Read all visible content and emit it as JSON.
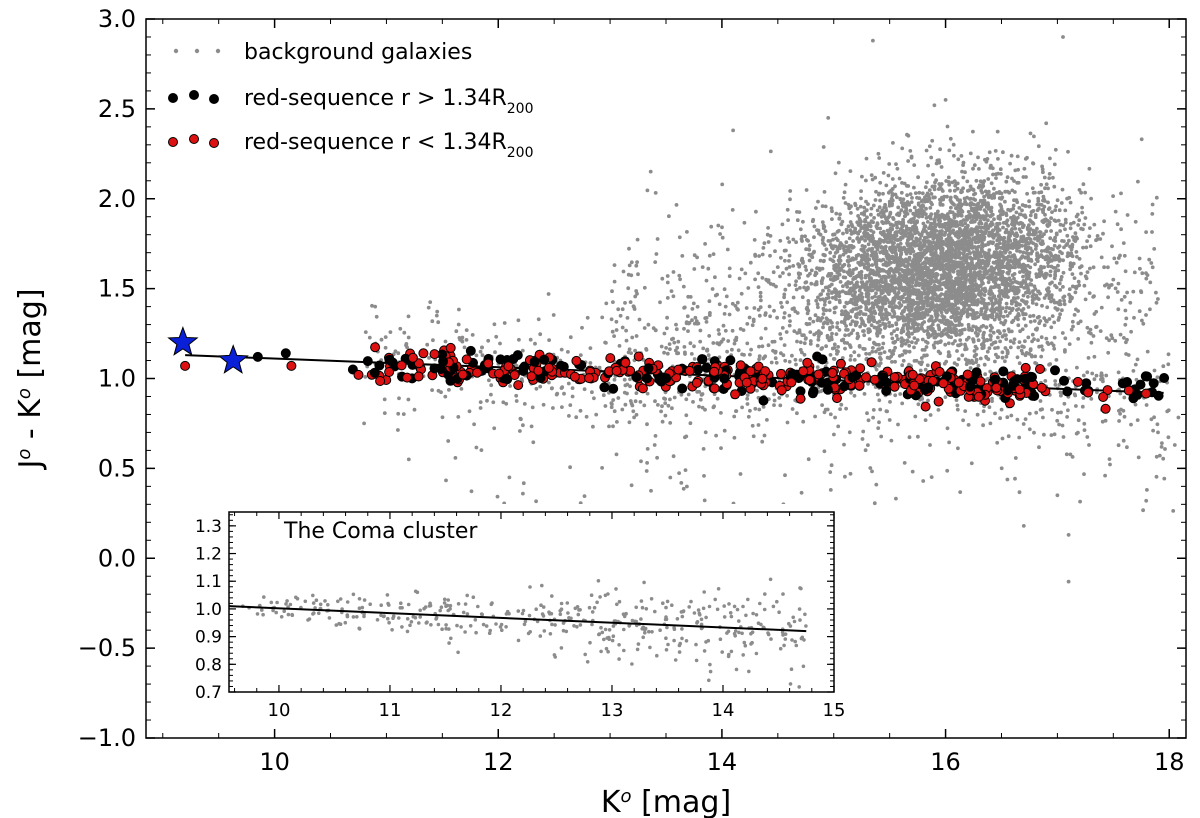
{
  "chart_data": {
    "type": "scatter",
    "xlabel": "K",
    "xlabel_sup": "o",
    "xlabel_unit": " [mag]",
    "ylabel": "J",
    "ylabel_sup": "o",
    "ylabel_mid": " - K",
    "ylabel_sup2": "o",
    "ylabel_unit": " [mag]",
    "xlim": [
      8.85,
      18.15
    ],
    "ylim": [
      -1.0,
      3.0
    ],
    "xticks": [
      10,
      12,
      14,
      16,
      18
    ],
    "yticks": [
      -1.0,
      -0.5,
      0.0,
      0.5,
      1.0,
      1.5,
      2.0,
      2.5,
      3.0
    ],
    "ytick_labels": [
      "−1.0",
      "−0.5",
      "0.0",
      "0.5",
      "1.0",
      "1.5",
      "2.0",
      "2.5",
      "3.0"
    ],
    "legend": [
      {
        "label": "background galaxies",
        "sub": "",
        "color": "#8c8c8c",
        "kind": "background"
      },
      {
        "label": "red-sequence r > 1.34R",
        "sub": "200",
        "color": "#000000",
        "kind": "outer"
      },
      {
        "label": "red-sequence r < 1.34R",
        "sub": "200",
        "color": "#dd1111",
        "kind": "inner"
      }
    ],
    "legend_position": "top-left",
    "fit_line": {
      "x": [
        9.2,
        17.95
      ],
      "y": [
        1.13,
        0.92
      ],
      "color": "#000000"
    },
    "stars": [
      {
        "x": 9.18,
        "y": 1.2,
        "color": "#0a1fd8"
      },
      {
        "x": 9.63,
        "y": 1.1,
        "color": "#0a1fd8"
      }
    ],
    "series": [
      {
        "name": "background galaxies",
        "color": "#8c8c8c",
        "generated": "dense cloud centered near K=16, J-K=1.6 plus sparse spread",
        "points": [
          [
            15.35,
            2.88
          ],
          [
            17.05,
            2.9
          ],
          [
            16.0,
            2.55
          ],
          [
            15.9,
            2.52
          ],
          [
            18.1,
            2.38
          ],
          [
            14.1,
            2.38
          ],
          [
            14.95,
            2.45
          ],
          [
            16.9,
            2.42
          ],
          [
            13.25,
            1.58
          ],
          [
            12.45,
            1.47
          ],
          [
            11.45,
            1.35
          ],
          [
            10.9,
            1.4
          ],
          [
            17.5,
            1.55
          ],
          [
            17.75,
            1.48
          ],
          [
            17.3,
            1.25
          ],
          [
            17.9,
            0.7
          ],
          [
            18.05,
            0.63
          ],
          [
            17.8,
            0.38
          ],
          [
            17.0,
            0.35
          ],
          [
            17.1,
            -0.13
          ],
          [
            17.1,
            0.13
          ],
          [
            16.7,
            0.18
          ],
          [
            15.8,
            0.43
          ],
          [
            15.15,
            0.47
          ],
          [
            14.55,
            0.3
          ],
          [
            13.65,
            0.25
          ],
          [
            12.7,
            0.28
          ],
          [
            12.1,
            0.45
          ],
          [
            11.2,
            0.55
          ],
          [
            10.8,
            0.75
          ]
        ]
      },
      {
        "name": "red-sequence r > 1.34R200",
        "color": "#000000",
        "generated": "points scattered around the fit line, K 9.2-18.0"
      },
      {
        "name": "red-sequence r < 1.34R200",
        "color": "#dd1111",
        "generated": "points scattered around the fit line, K 9.2-17.5"
      }
    ],
    "inset": {
      "title": "The Coma cluster",
      "type": "scatter",
      "xlim": [
        9.55,
        15.0
      ],
      "ylim": [
        0.7,
        1.35
      ],
      "xticks": [
        10,
        11,
        12,
        13,
        14,
        15
      ],
      "yticks": [
        0.7,
        0.8,
        0.9,
        1.0,
        1.1,
        1.2,
        1.3
      ],
      "ytick_labels": [
        "0.7",
        "0.8",
        "0.9",
        "1.0",
        "1.1",
        "1.2",
        "1.3"
      ],
      "fit_line": {
        "x": [
          9.55,
          14.75
        ],
        "y": [
          1.01,
          0.92
        ]
      },
      "point_color": "#8c8c8c",
      "generated": "grey points around fit line, K 9.6-14.8"
    }
  }
}
